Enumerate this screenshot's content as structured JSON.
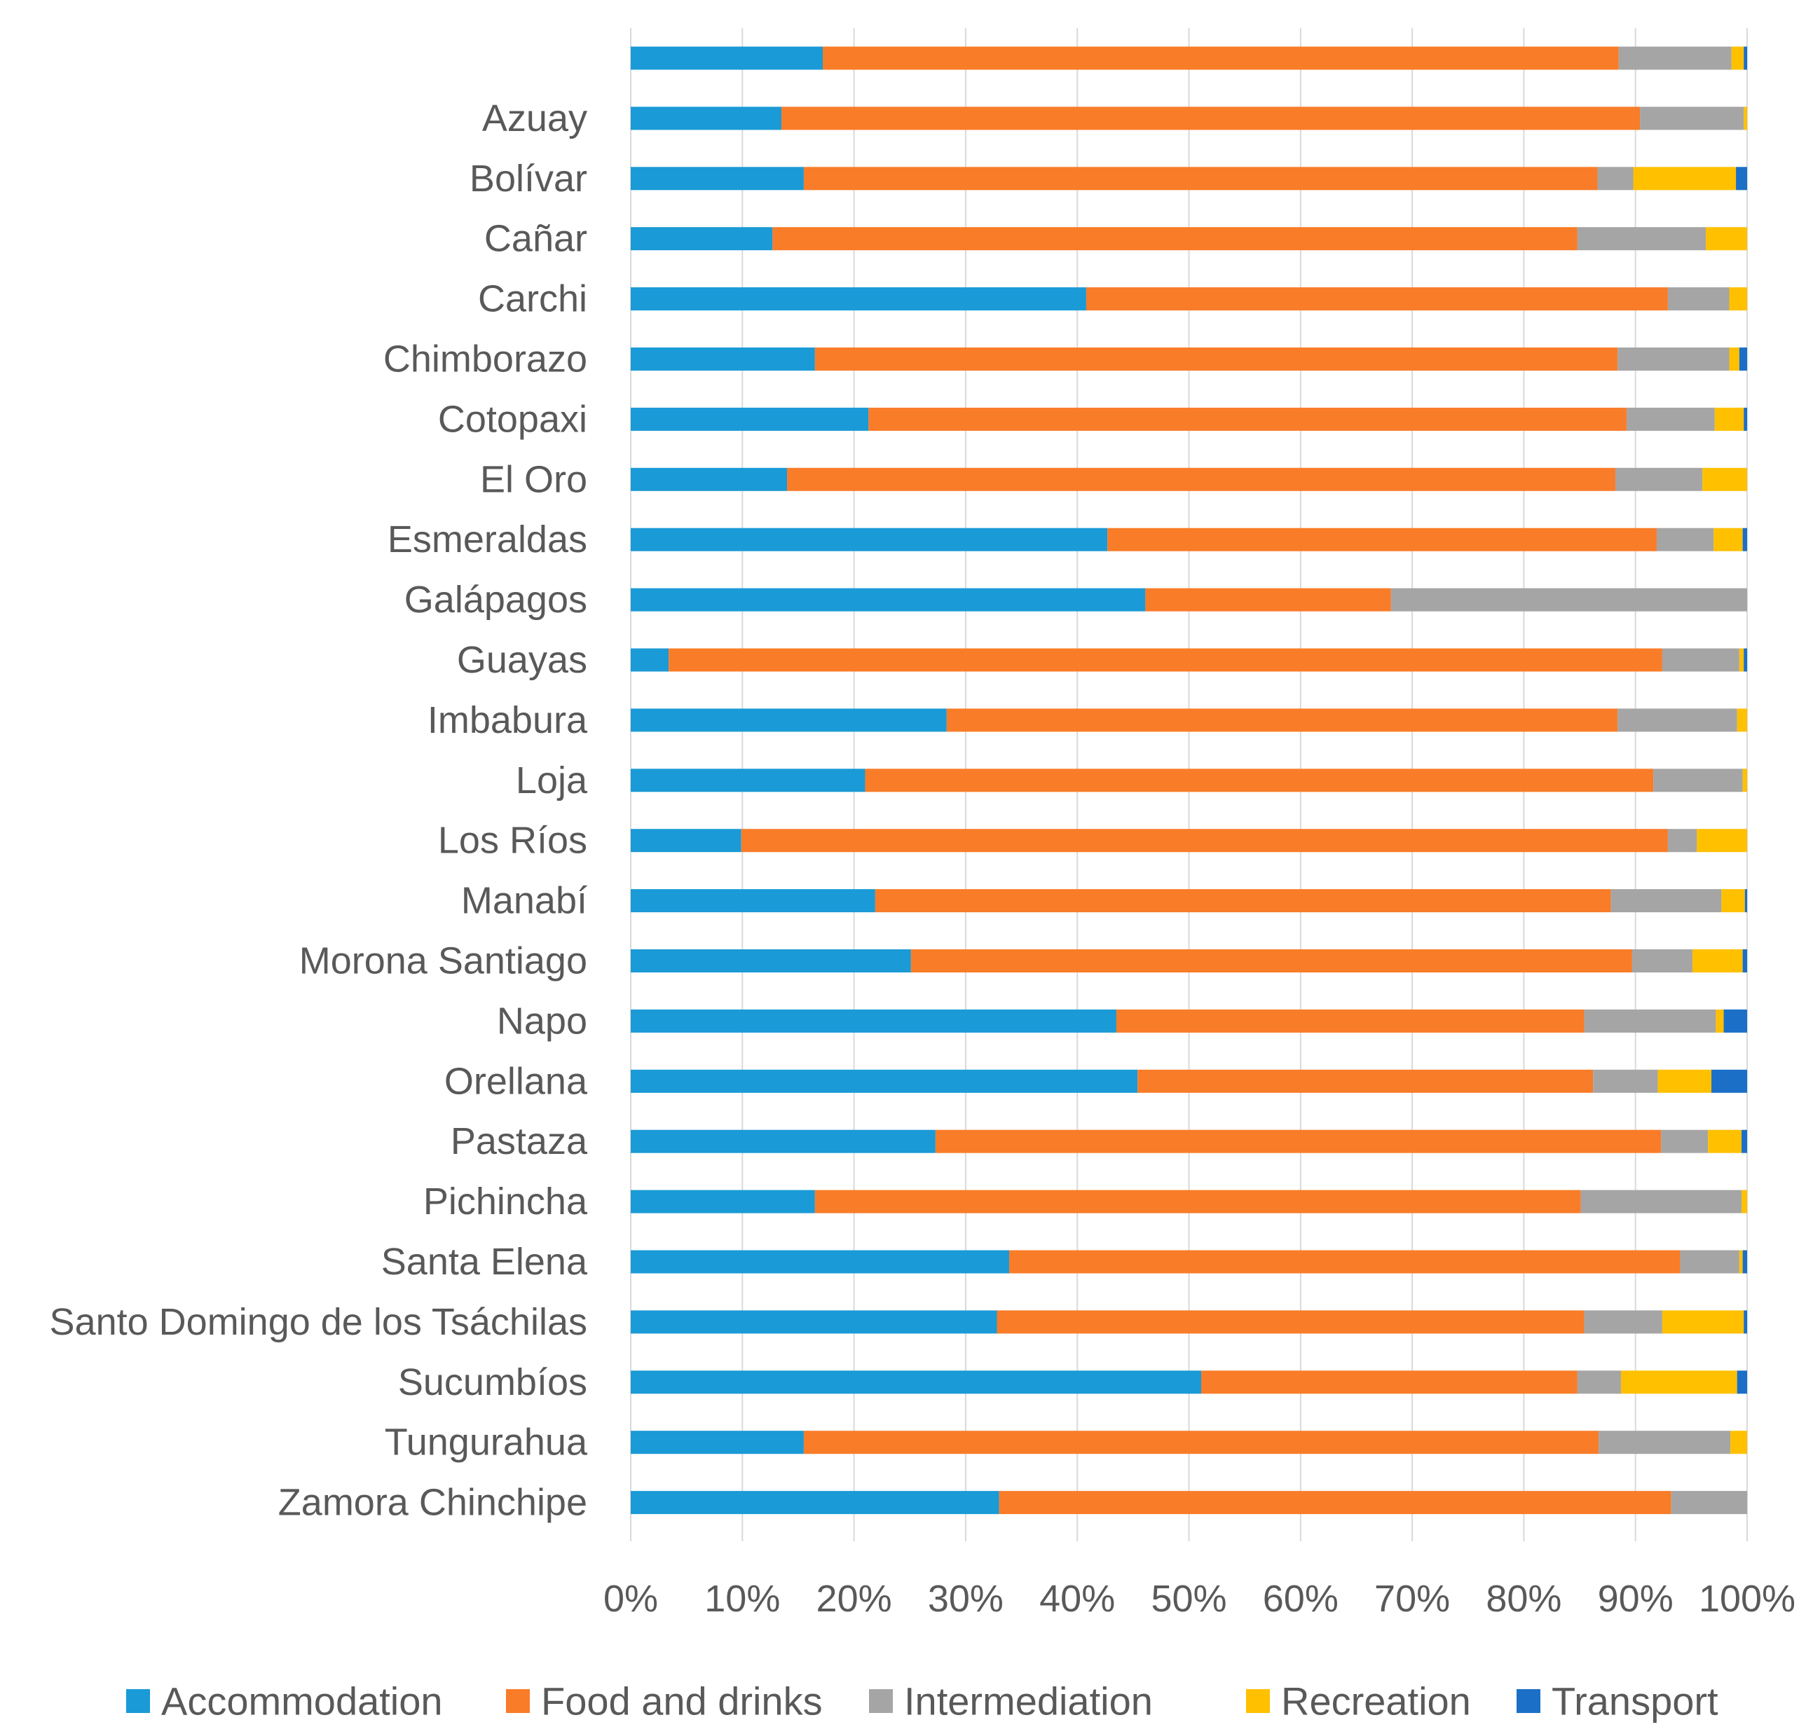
{
  "chart_data": {
    "type": "bar",
    "orientation": "horizontal",
    "stacked": true,
    "normalized": true,
    "title": "",
    "xlabel": "",
    "ylabel": "",
    "xlim": [
      0,
      100
    ],
    "grid": true,
    "legend_position": "bottom",
    "x_ticks": [
      "0%",
      "10%",
      "20%",
      "30%",
      "40%",
      "50%",
      "60%",
      "70%",
      "80%",
      "90%",
      "100%"
    ],
    "categories": [
      "",
      "Azuay",
      "Bolívar",
      "Cañar",
      "Carchi",
      "Chimborazo",
      "Cotopaxi",
      "El Oro",
      "Esmeraldas",
      "Galápagos",
      "Guayas",
      "Imbabura",
      "Loja",
      "Los Ríos",
      "Manabí",
      "Morona Santiago",
      "Napo",
      "Orellana",
      "Pastaza",
      "Pichincha",
      "Santa Elena",
      "Santo Domingo de los Tsáchilas",
      "Sucumbíos",
      "Tungurahua",
      "Zamora Chinchipe"
    ],
    "series": [
      {
        "name": "Accommodation",
        "color": "#1a9ad6",
        "values": [
          17.2,
          13.5,
          15.5,
          12.7,
          40.8,
          16.5,
          21.3,
          14.0,
          42.7,
          46.1,
          3.4,
          28.3,
          21.0,
          9.9,
          21.9,
          25.1,
          43.5,
          45.4,
          27.3,
          16.5,
          33.9,
          32.8,
          51.1,
          15.5,
          33.0
        ]
      },
      {
        "name": "Food and drinks",
        "color": "#f97c28",
        "values": [
          71.3,
          76.9,
          71.1,
          72.1,
          52.1,
          71.9,
          67.9,
          74.2,
          49.2,
          22.0,
          89.0,
          60.1,
          70.6,
          83.0,
          65.9,
          64.6,
          41.9,
          40.8,
          65.0,
          68.6,
          60.1,
          52.6,
          33.7,
          71.2,
          60.2
        ]
      },
      {
        "name": "Intermediation",
        "color": "#a5a5a5",
        "values": [
          10.1,
          9.3,
          3.2,
          11.5,
          5.5,
          10.0,
          7.9,
          7.8,
          5.1,
          31.9,
          6.9,
          10.7,
          8.0,
          2.6,
          9.9,
          5.4,
          11.8,
          5.8,
          4.2,
          14.4,
          5.3,
          7.0,
          3.9,
          11.8,
          6.8
        ]
      },
      {
        "name": "Recreation",
        "color": "#ffc000",
        "values": [
          1.1,
          0.3,
          9.2,
          3.7,
          1.6,
          0.9,
          2.6,
          4.0,
          2.6,
          0.0,
          0.4,
          0.9,
          0.4,
          4.5,
          2.1,
          4.5,
          0.7,
          4.8,
          3.0,
          0.5,
          0.3,
          7.3,
          10.4,
          1.5,
          0.0
        ]
      },
      {
        "name": "Transport",
        "color": "#1b6fc6",
        "values": [
          0.3,
          0.0,
          1.0,
          0.0,
          0.0,
          0.7,
          0.3,
          0.0,
          0.4,
          0.0,
          0.3,
          0.0,
          0.0,
          0.0,
          0.2,
          0.4,
          2.1,
          3.2,
          0.5,
          0.0,
          0.4,
          0.3,
          0.9,
          0.0,
          0.0
        ]
      }
    ]
  }
}
